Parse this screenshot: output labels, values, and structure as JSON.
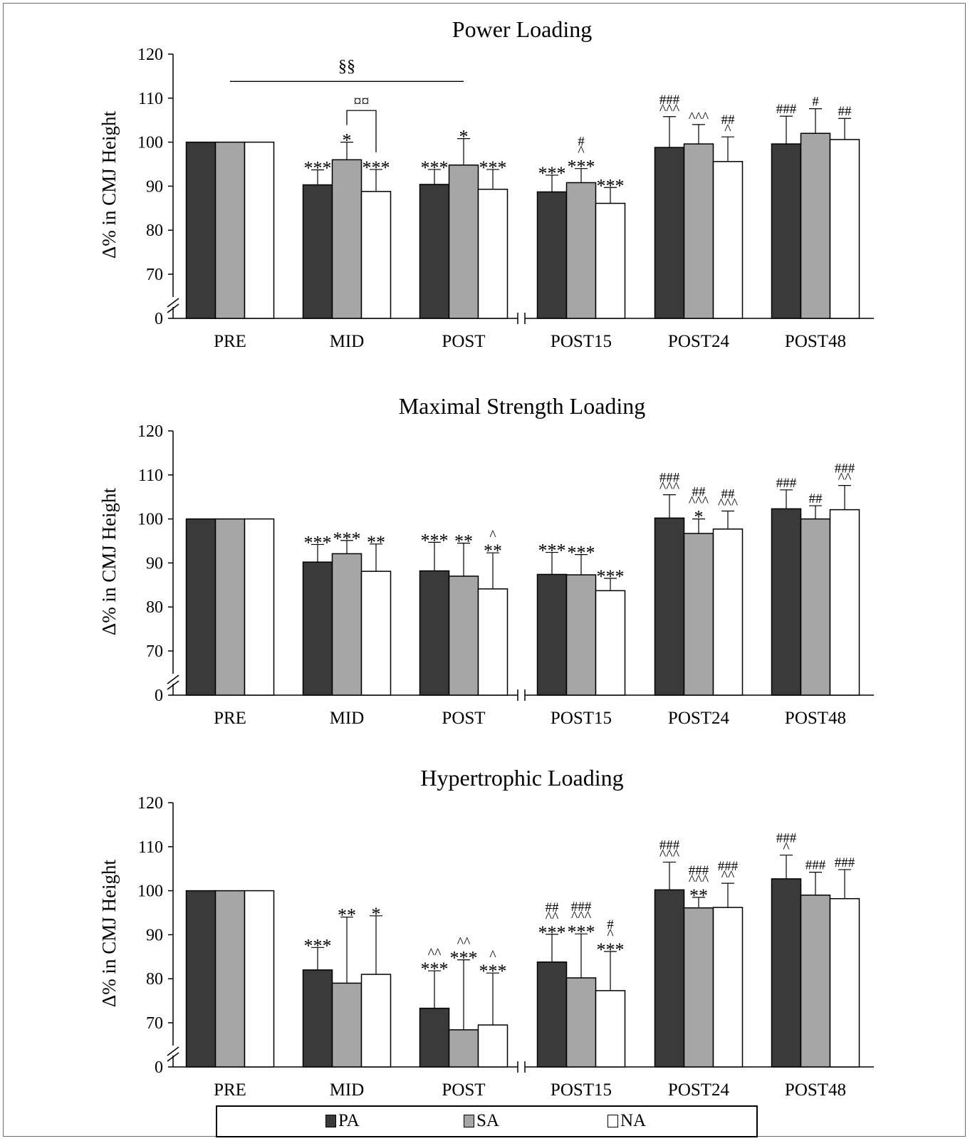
{
  "categories": [
    "PRE",
    "MID",
    "POST",
    "POST15",
    "POST24",
    "POST48"
  ],
  "ylabel": "Δ% in CMJ Height",
  "yticks": [
    0,
    70,
    80,
    90,
    100,
    110,
    120
  ],
  "legend": [
    {
      "name": "PA",
      "color": "#3a3a3a"
    },
    {
      "name": "SA",
      "color": "#a6a6a6"
    },
    {
      "name": "NA",
      "color": "#ffffff"
    }
  ],
  "chart_data": [
    {
      "type": "bar",
      "title": "Power Loading",
      "categories": [
        "PRE",
        "MID",
        "POST",
        "POST15",
        "POST24",
        "POST48"
      ],
      "ylim": [
        60,
        120
      ],
      "axis_break": {
        "from": 0,
        "to": 65
      },
      "series": [
        {
          "name": "PA",
          "values": [
            100,
            90.3,
            90.4,
            88.7,
            98.8,
            99.6
          ],
          "errors": [
            0,
            3.4,
            3.4,
            3.8,
            7.0,
            6.3
          ],
          "annotations": [
            "",
            "***",
            "***",
            "***",
            "###\n^^^",
            "###"
          ]
        },
        {
          "name": "SA",
          "values": [
            100,
            96.0,
            94.8,
            90.8,
            99.6,
            102.0
          ],
          "errors": [
            0,
            4.0,
            6.0,
            3.2,
            4.4,
            5.6
          ],
          "annotations": [
            "",
            "*",
            "*",
            "#\n^\n***",
            "^^^",
            "#"
          ]
        },
        {
          "name": "NA",
          "values": [
            100,
            88.8,
            89.3,
            86.1,
            95.6,
            100.6
          ],
          "errors": [
            0,
            5.0,
            4.5,
            3.6,
            5.6,
            4.8
          ],
          "annotations": [
            "",
            "***",
            "***",
            "***",
            "##\n^",
            "##"
          ]
        }
      ],
      "brackets": [
        {
          "label": "§§",
          "from": "PRE",
          "to": "POST",
          "level": 113.8
        },
        {
          "label": "¤¤",
          "from_series": "SA",
          "to_series": "NA",
          "category": "MID",
          "level": 107.2
        }
      ]
    },
    {
      "type": "bar",
      "title": "Maximal Strength Loading",
      "categories": [
        "PRE",
        "MID",
        "POST",
        "POST15",
        "POST24",
        "POST48"
      ],
      "ylim": [
        60,
        120
      ],
      "axis_break": {
        "from": 0,
        "to": 65
      },
      "series": [
        {
          "name": "PA",
          "values": [
            100,
            90.2,
            88.2,
            87.4,
            100.2,
            102.3
          ],
          "errors": [
            0,
            4.0,
            6.5,
            5.0,
            5.3,
            4.3
          ],
          "annotations": [
            "",
            "***",
            "***",
            "***",
            "###\n^^^",
            "###"
          ]
        },
        {
          "name": "SA",
          "values": [
            100,
            92.1,
            87.0,
            87.3,
            96.7,
            100.0
          ],
          "errors": [
            0,
            3.0,
            7.5,
            4.6,
            3.3,
            3.0
          ],
          "annotations": [
            "",
            "***",
            "**",
            "***",
            "##\n^^^\n*",
            "##"
          ]
        },
        {
          "name": "NA",
          "values": [
            100,
            88.1,
            84.1,
            83.7,
            97.7,
            102.1
          ],
          "errors": [
            0,
            6.2,
            8.2,
            2.8,
            4.1,
            5.5
          ],
          "annotations": [
            "",
            "**",
            "^\n**",
            "***",
            "##\n^^^",
            "###\n^^"
          ]
        }
      ]
    },
    {
      "type": "bar",
      "title": "Hypertrophic Loading",
      "categories": [
        "PRE",
        "MID",
        "POST",
        "POST15",
        "POST24",
        "POST48"
      ],
      "ylim": [
        60,
        120
      ],
      "axis_break": {
        "from": 0,
        "to": 65
      },
      "series": [
        {
          "name": "PA",
          "values": [
            100,
            82.0,
            73.3,
            83.8,
            100.2,
            102.7
          ],
          "errors": [
            0,
            5.1,
            8.5,
            6.3,
            6.3,
            5.4
          ],
          "annotations": [
            "",
            "***",
            "^^\n***",
            "##\n^^\n***",
            "###\n^^^",
            "###\n^"
          ]
        },
        {
          "name": "SA",
          "values": [
            100,
            79.0,
            68.4,
            80.2,
            96.1,
            99.0
          ],
          "errors": [
            0,
            15.0,
            15.9,
            10.0,
            2.4,
            5.2
          ],
          "annotations": [
            "",
            "**",
            "^^\n***",
            "###\n^^^\n***",
            "###\n^^^\n**",
            "###"
          ]
        },
        {
          "name": "NA",
          "values": [
            100,
            81.0,
            69.5,
            77.3,
            96.2,
            98.2
          ],
          "errors": [
            0,
            13.3,
            11.8,
            8.9,
            5.5,
            6.6
          ],
          "annotations": [
            "",
            "*",
            "^\n***",
            "#\n^\n***",
            "###\n^^",
            "###"
          ]
        }
      ]
    }
  ]
}
